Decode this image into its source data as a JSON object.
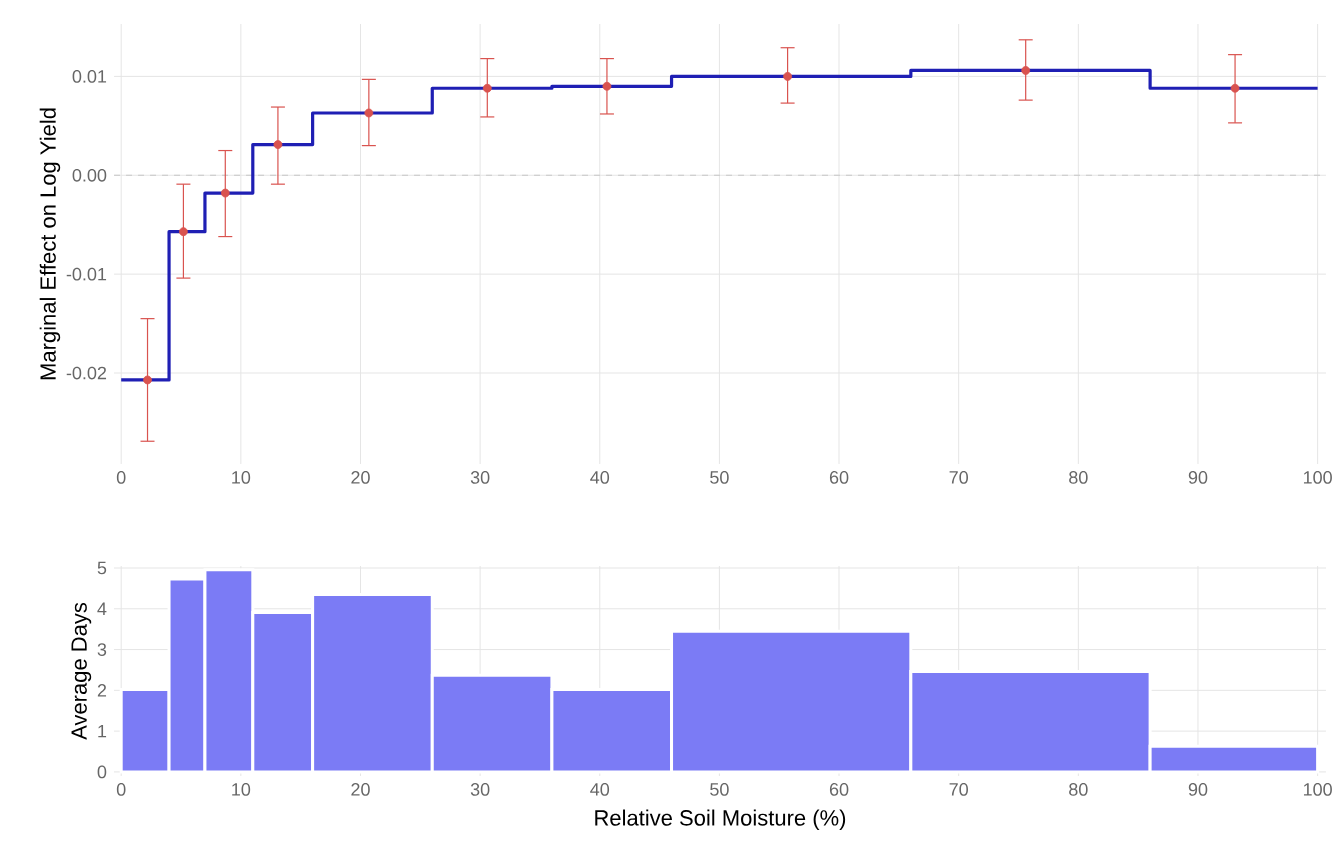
{
  "chart_data": [
    {
      "type": "step",
      "ylabel": "Marginal Effect on Log Yield",
      "xlim": [
        -0.6,
        100.7
      ],
      "ylim": [
        -0.0292,
        0.0153
      ],
      "xticks": [
        0,
        10,
        20,
        30,
        40,
        50,
        60,
        70,
        80,
        90,
        100
      ],
      "yticks": [
        {
          "value": -0.02,
          "label": "-0.02"
        },
        {
          "value": -0.01,
          "label": "-0.01"
        },
        {
          "value": 0,
          "label": "0.00"
        },
        {
          "value": 0.01,
          "label": "0.01"
        }
      ],
      "grid": true,
      "ref_lines": [
        {
          "axis": "y",
          "value": 0,
          "color": "#c8c8c8",
          "line_style": "dashed"
        }
      ],
      "series": [
        {
          "type": "step",
          "color": "#1f1fb4",
          "x": [
            0,
            4,
            7,
            11,
            16,
            26,
            36,
            46,
            66,
            86,
            100
          ],
          "values": [
            -0.0207,
            -0.0057,
            -0.0018,
            0.0031,
            0.0063,
            0.0088,
            0.009,
            0.01,
            0.0106,
            0.0088,
            0.0088
          ]
        },
        {
          "type": "scatter",
          "color": "#d9534f",
          "marker": "circle",
          "x": [
            2.2,
            5.2,
            8.7,
            13.1,
            20.7,
            30.6,
            40.6,
            55.7,
            75.6,
            93.1
          ],
          "values": [
            -0.0207,
            -0.0057,
            -0.0018,
            0.0031,
            0.0063,
            0.0088,
            0.009,
            0.01,
            0.0106,
            0.0088
          ],
          "errors": [
            [
              -0.0269,
              -0.0145
            ],
            [
              -0.0104,
              -0.0009
            ],
            [
              -0.0062,
              0.0025
            ],
            [
              -0.0009,
              0.0069
            ],
            [
              0.003,
              0.0097
            ],
            [
              0.0059,
              0.0118
            ],
            [
              0.0062,
              0.0118
            ],
            [
              0.0073,
              0.0129
            ],
            [
              0.0076,
              0.0137
            ],
            [
              0.0053,
              0.0122
            ]
          ]
        }
      ]
    },
    {
      "type": "histogram",
      "xlabel": "Relative Soil Moisture (%)",
      "ylabel": "Average Days",
      "xlim": [
        -0.6,
        100.7
      ],
      "ylim": [
        -0.1,
        5.05
      ],
      "xticks": [
        0,
        10,
        20,
        30,
        40,
        50,
        60,
        70,
        80,
        90,
        100
      ],
      "yticks": [
        0,
        1,
        2,
        3,
        4,
        5
      ],
      "grid": true,
      "color": "#7b7bf5",
      "bins": [
        0,
        4,
        7,
        11,
        16,
        26,
        36,
        46,
        66,
        86,
        100
      ],
      "values": [
        2.02,
        4.73,
        4.96,
        3.91,
        4.35,
        2.37,
        2.02,
        3.45,
        2.46,
        0.63
      ]
    }
  ]
}
